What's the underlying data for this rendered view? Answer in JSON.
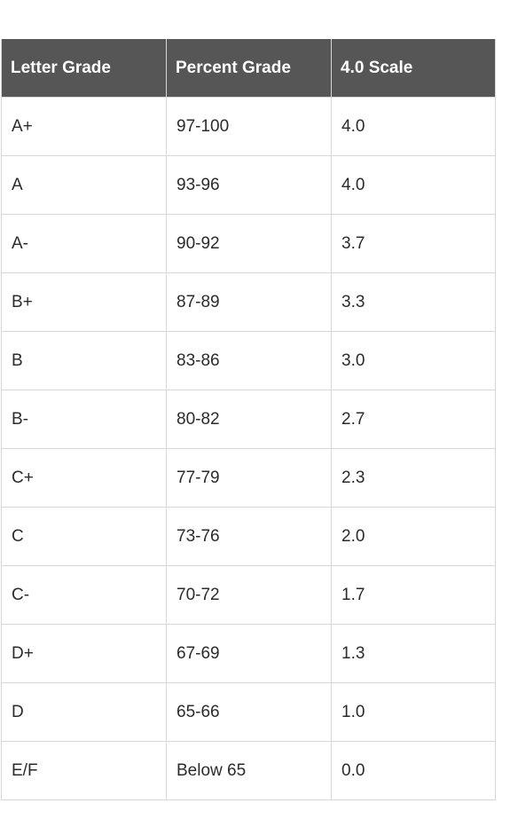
{
  "table": {
    "headers": [
      "Letter Grade",
      "Percent Grade",
      "4.0 Scale"
    ],
    "rows": [
      [
        "A+",
        "97-100",
        "4.0"
      ],
      [
        "A",
        "93-96",
        "4.0"
      ],
      [
        "A-",
        "90-92",
        "3.7"
      ],
      [
        "B+",
        "87-89",
        "3.3"
      ],
      [
        "B",
        "83-86",
        "3.0"
      ],
      [
        "B-",
        "80-82",
        "2.7"
      ],
      [
        "C+",
        "77-79",
        "2.3"
      ],
      [
        "C",
        "73-76",
        "2.0"
      ],
      [
        "C-",
        "70-72",
        "1.7"
      ],
      [
        "D+",
        "67-69",
        "1.3"
      ],
      [
        "D",
        "65-66",
        "1.0"
      ],
      [
        "E/F",
        "Below 65",
        "0.0"
      ]
    ],
    "header_bg": "#565656",
    "header_text_color": "#ffffff",
    "border_color": "#d7d7d7"
  }
}
